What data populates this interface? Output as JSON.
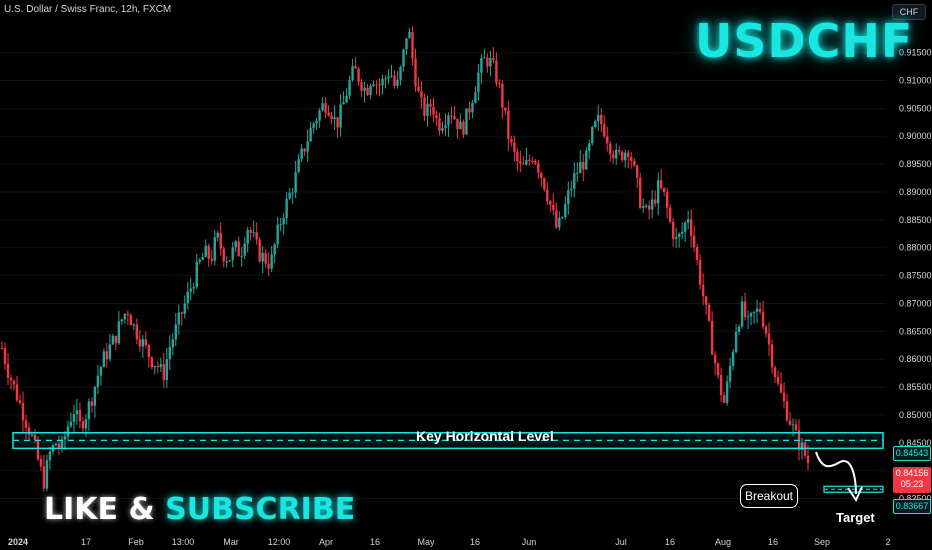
{
  "header": {
    "symbol_title": "U.S. Dollar / Swiss Franc, 12h, FXCM"
  },
  "currency_button": "CHF",
  "brand_title": "USDCHF",
  "cta": {
    "like": "LIKE",
    "amp": "&",
    "subscribe": "SUBSCRIBE"
  },
  "annotations": {
    "key_level_label": "Key Horizontal Level",
    "breakout_label": "Breakout",
    "target_label": "Target"
  },
  "price_tags": {
    "key_level": "0.84543",
    "current_price": "0.84156",
    "countdown": "05:23",
    "target": "0.83667"
  },
  "colors": {
    "up": "#26a69a",
    "down": "#f23645",
    "accent": "#19e6e1",
    "background": "#000000"
  },
  "chart_data": {
    "type": "candlestick",
    "timeframe": "12h",
    "ylim": [
      0.829,
      0.923
    ],
    "y_ticks": [
      "0.91500",
      "0.91000",
      "0.90500",
      "0.90000",
      "0.89500",
      "0.89000",
      "0.88500",
      "0.88000",
      "0.87500",
      "0.87000",
      "0.86500",
      "0.86000",
      "0.85500",
      "0.85000",
      "0.84500",
      "0.84000",
      "0.83500"
    ],
    "x_ticks": [
      "2024",
      "17",
      "Feb",
      "13:00",
      "Mar",
      "12:00",
      "Apr",
      "16",
      "May",
      "16",
      "Jun",
      "Jul",
      "16",
      "Aug",
      "16",
      "Sep",
      "2"
    ],
    "key_level": {
      "low": 0.844,
      "high": 0.8468,
      "mid": 0.84543
    },
    "target_level": 0.83667,
    "close_path": [
      0.862,
      0.858,
      0.855,
      0.852,
      0.849,
      0.846,
      0.842,
      0.838,
      0.843,
      0.845,
      0.844,
      0.848,
      0.851,
      0.848,
      0.85,
      0.853,
      0.857,
      0.86,
      0.862,
      0.864,
      0.867,
      0.869,
      0.866,
      0.864,
      0.862,
      0.86,
      0.859,
      0.857,
      0.862,
      0.865,
      0.868,
      0.871,
      0.874,
      0.877,
      0.879,
      0.878,
      0.882,
      0.879,
      0.878,
      0.88,
      0.879,
      0.884,
      0.882,
      0.879,
      0.878,
      0.877,
      0.882,
      0.886,
      0.889,
      0.892,
      0.896,
      0.899,
      0.902,
      0.904,
      0.906,
      0.905,
      0.902,
      0.905,
      0.909,
      0.912,
      0.91,
      0.908,
      0.911,
      0.909,
      0.91,
      0.912,
      0.908,
      0.913,
      0.92,
      0.912,
      0.906,
      0.904,
      0.906,
      0.902,
      0.903,
      0.905,
      0.903,
      0.901,
      0.904,
      0.908,
      0.912,
      0.914,
      0.913,
      0.91,
      0.905,
      0.899,
      0.896,
      0.894,
      0.895,
      0.897,
      0.894,
      0.891,
      0.887,
      0.883,
      0.886,
      0.89,
      0.893,
      0.895,
      0.896,
      0.901,
      0.903,
      0.901,
      0.898,
      0.896,
      0.897,
      0.898,
      0.893,
      0.888,
      0.886,
      0.888,
      0.891,
      0.889,
      0.884,
      0.881,
      0.883,
      0.886,
      0.88,
      0.874,
      0.868,
      0.862,
      0.856,
      0.852,
      0.859,
      0.866,
      0.869,
      0.866,
      0.868,
      0.869,
      0.865,
      0.86,
      0.855,
      0.852,
      0.849,
      0.846,
      0.844,
      0.8416
    ]
  }
}
